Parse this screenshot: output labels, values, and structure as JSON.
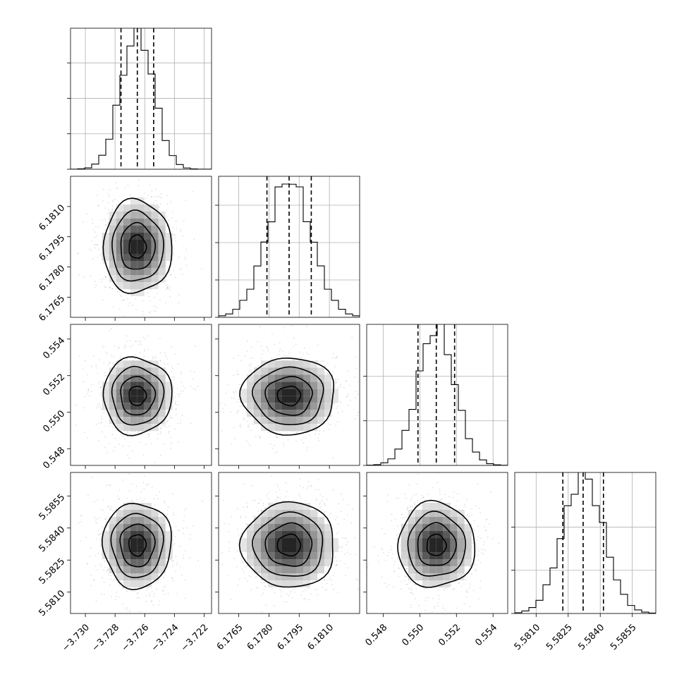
{
  "chart_data": {
    "type": "corner",
    "title": "",
    "grid": true,
    "legend": "none",
    "params": [
      {
        "name": "",
        "mean": -3.7265,
        "sigma": 0.0011,
        "q16": -3.7276,
        "q50": -3.7265,
        "q84": -3.7254,
        "range": [
          -3.731,
          -3.7215
        ],
        "ticks": [
          -3.73,
          -3.728,
          -3.726,
          -3.724,
          -3.722
        ],
        "tick_labels": [
          "−3.730",
          "−3.728",
          "−3.726",
          "−3.724",
          "−3.722"
        ],
        "hist_ticks": [
          0,
          1000,
          2000,
          3000
        ],
        "hist_max": 3900
      },
      {
        "name": "",
        "mean": 6.179,
        "sigma": 0.0011,
        "q16": 6.1779,
        "q50": 6.179,
        "q84": 6.1801,
        "range": [
          6.1755,
          6.1825
        ],
        "ticks": [
          6.1765,
          6.178,
          6.1795,
          6.181
        ],
        "tick_labels": [
          "6.1765",
          "6.1780",
          "6.1795",
          "6.1810"
        ],
        "hist_ticks": [
          0,
          1000,
          2000,
          3000
        ],
        "hist_max": 3700
      },
      {
        "name": "",
        "mean": 0.5509,
        "sigma": 0.001,
        "q16": 0.5499,
        "q50": 0.5509,
        "q84": 0.5519,
        "range": [
          0.5471,
          0.5548
        ],
        "ticks": [
          0.548,
          0.55,
          0.552,
          0.554
        ],
        "tick_labels": [
          "0.548",
          "0.550",
          "0.552",
          "0.554"
        ],
        "hist_ticks": [
          0,
          1000,
          2000
        ],
        "hist_max": 3100
      },
      {
        "name": "",
        "mean": 5.5832,
        "sigma": 0.00095,
        "q16": 5.58225,
        "q50": 5.5832,
        "q84": 5.58415,
        "range": [
          5.58,
          5.5866
        ],
        "ticks": [
          5.581,
          5.5825,
          5.584,
          5.5855
        ],
        "tick_labels": [
          "5.5810",
          "5.5825",
          "5.5840",
          "5.5855"
        ],
        "hist_ticks": [
          0,
          1000,
          2000
        ],
        "hist_max": 3200
      }
    ],
    "histogram_bins": 20,
    "contour_levels_sigma": [
      0.5,
      1.0,
      1.5,
      2.0
    ],
    "scatter_points_per_panel": 900
  }
}
